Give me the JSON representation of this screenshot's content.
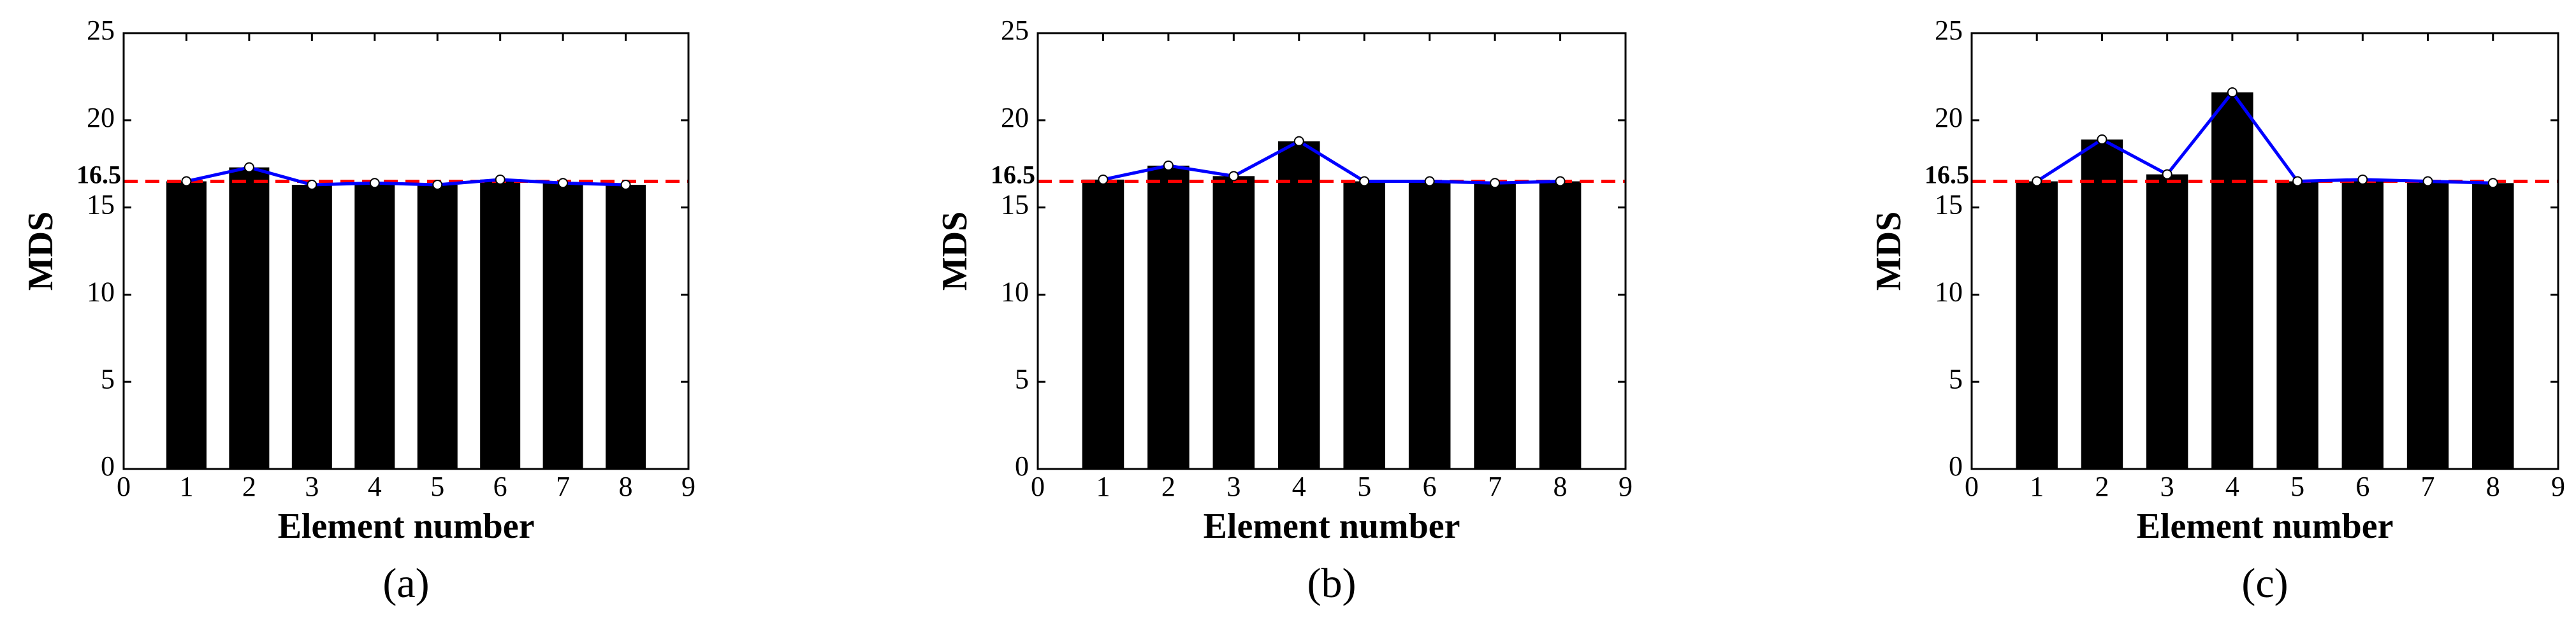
{
  "chart_data": [
    {
      "type": "bar",
      "caption": "(a)",
      "xlabel": "Element number",
      "ylabel": "MDS",
      "x": [
        1,
        2,
        3,
        4,
        5,
        6,
        7,
        8
      ],
      "values": [
        16.5,
        17.3,
        16.3,
        16.4,
        16.3,
        16.6,
        16.4,
        16.3
      ],
      "xlim": [
        0,
        9
      ],
      "xticks": [
        0,
        1,
        2,
        3,
        4,
        5,
        6,
        7,
        8,
        9
      ],
      "ylim": [
        0,
        25
      ],
      "yticks": [
        0,
        5,
        10,
        15,
        20,
        25
      ],
      "threshold": 16.5,
      "bar_color": "#000000",
      "line_color": "#0000ff",
      "threshold_color": "#ff0000"
    },
    {
      "type": "bar",
      "caption": "(b)",
      "xlabel": "Element number",
      "ylabel": "MDS",
      "x": [
        1,
        2,
        3,
        4,
        5,
        6,
        7,
        8
      ],
      "values": [
        16.6,
        17.4,
        16.8,
        18.8,
        16.5,
        16.5,
        16.4,
        16.5
      ],
      "xlim": [
        0,
        9
      ],
      "xticks": [
        0,
        1,
        2,
        3,
        4,
        5,
        6,
        7,
        8,
        9
      ],
      "ylim": [
        0,
        25
      ],
      "yticks": [
        0,
        5,
        10,
        15,
        20,
        25
      ],
      "threshold": 16.5,
      "bar_color": "#000000",
      "line_color": "#0000ff",
      "threshold_color": "#ff0000"
    },
    {
      "type": "bar",
      "caption": "(c)",
      "xlabel": "Element number",
      "ylabel": "MDS",
      "x": [
        1,
        2,
        3,
        4,
        5,
        6,
        7,
        8
      ],
      "values": [
        16.5,
        18.9,
        16.9,
        21.6,
        16.5,
        16.6,
        16.5,
        16.4
      ],
      "xlim": [
        0,
        9
      ],
      "xticks": [
        0,
        1,
        2,
        3,
        4,
        5,
        6,
        7,
        8,
        9
      ],
      "ylim": [
        0,
        25
      ],
      "yticks": [
        0,
        5,
        10,
        15,
        20,
        25
      ],
      "threshold": 16.5,
      "bar_color": "#000000",
      "line_color": "#0000ff",
      "threshold_color": "#ff0000"
    }
  ]
}
